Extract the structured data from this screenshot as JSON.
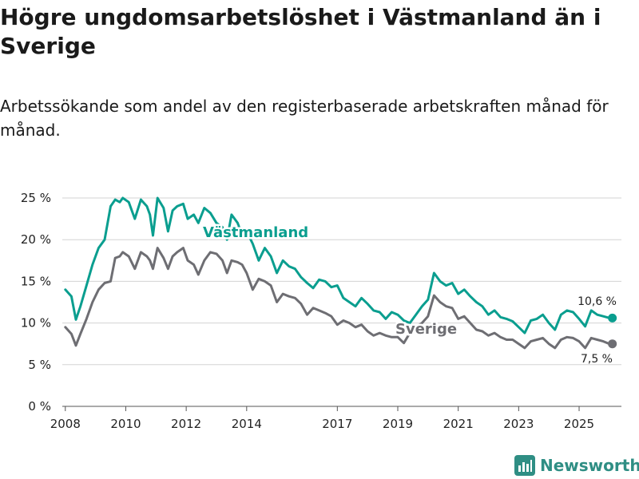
{
  "title": "Högre ungdomsarbetslöshet i Västmanland än i Sverige",
  "subtitle": "Arbetssökande som andel av den registerbaserade arbetskraften månad för månad.",
  "brand": "Newsworthy",
  "colors": {
    "vastmanland": "#0a9e8f",
    "sverige": "#6e6e73",
    "grid": "#d3d3d3",
    "brand": "#2f8e84"
  },
  "chart_data": {
    "type": "line",
    "y_ticks": [
      0,
      5,
      10,
      15,
      20,
      25
    ],
    "y_tick_labels": [
      "0 %",
      "5 %",
      "10 %",
      "15 %",
      "20 %",
      "25 %"
    ],
    "ylim": [
      0,
      25
    ],
    "x_ticks": [
      2008,
      2010,
      2012,
      2014,
      2017,
      2019,
      2021,
      2023,
      2025
    ],
    "xlim": [
      2007.9,
      2026.4
    ],
    "xlabel": "",
    "ylabel": "",
    "series": [
      {
        "name": "Västmanland",
        "label": "Västmanland",
        "end_label": "10,6 %",
        "x": [
          2008.0,
          2008.2,
          2008.35,
          2008.5,
          2008.7,
          2008.9,
          2009.1,
          2009.3,
          2009.5,
          2009.65,
          2009.8,
          2009.9,
          2010.1,
          2010.3,
          2010.5,
          2010.7,
          2010.8,
          2010.9,
          2011.05,
          2011.25,
          2011.4,
          2011.55,
          2011.7,
          2011.9,
          2012.05,
          2012.25,
          2012.4,
          2012.6,
          2012.8,
          2013.0,
          2013.2,
          2013.35,
          2013.5,
          2013.7,
          2013.85,
          2014.0,
          2014.2,
          2014.4,
          2014.6,
          2014.8,
          2015.0,
          2015.2,
          2015.4,
          2015.6,
          2015.8,
          2016.0,
          2016.2,
          2016.4,
          2016.6,
          2016.8,
          2017.0,
          2017.2,
          2017.4,
          2017.6,
          2017.8,
          2018.0,
          2018.2,
          2018.4,
          2018.6,
          2018.8,
          2019.0,
          2019.2,
          2019.4,
          2019.6,
          2019.8,
          2020.0,
          2020.2,
          2020.4,
          2020.6,
          2020.8,
          2021.0,
          2021.2,
          2021.4,
          2021.6,
          2021.8,
          2022.0,
          2022.2,
          2022.4,
          2022.6,
          2022.8,
          2023.0,
          2023.2,
          2023.4,
          2023.6,
          2023.8,
          2024.0,
          2024.2,
          2024.4,
          2024.6,
          2024.8,
          2025.0,
          2025.2,
          2025.4,
          2025.6,
          2025.8,
          2026.0,
          2026.1
        ],
        "values": [
          14.0,
          13.2,
          10.4,
          12.0,
          14.5,
          17.0,
          19.0,
          20.0,
          24.0,
          24.8,
          24.5,
          25.0,
          24.5,
          22.5,
          24.8,
          24.0,
          23.0,
          20.5,
          25.0,
          23.8,
          21.0,
          23.5,
          24.0,
          24.3,
          22.5,
          23.0,
          22.0,
          23.8,
          23.2,
          22.0,
          21.5,
          20.0,
          23.0,
          22.0,
          20.5,
          21.0,
          19.5,
          17.5,
          19.0,
          18.0,
          16.0,
          17.5,
          16.8,
          16.5,
          15.5,
          14.8,
          14.2,
          15.2,
          15.0,
          14.3,
          14.5,
          13.0,
          12.5,
          12.0,
          13.0,
          12.3,
          11.5,
          11.3,
          10.5,
          11.3,
          11.0,
          10.3,
          10.0,
          11.0,
          12.0,
          12.8,
          16.0,
          15.0,
          14.5,
          14.8,
          13.5,
          14.0,
          13.2,
          12.5,
          12.0,
          11.0,
          11.5,
          10.7,
          10.5,
          10.2,
          9.5,
          8.8,
          10.3,
          10.5,
          11.0,
          10.0,
          9.2,
          11.0,
          11.5,
          11.3,
          10.5,
          9.6,
          11.5,
          11.0,
          10.8,
          10.6,
          10.6
        ]
      },
      {
        "name": "Sverige",
        "label": "Sverige",
        "end_label": "7,5 %",
        "x": [
          2008.0,
          2008.2,
          2008.35,
          2008.5,
          2008.7,
          2008.9,
          2009.1,
          2009.3,
          2009.5,
          2009.65,
          2009.8,
          2009.9,
          2010.1,
          2010.3,
          2010.5,
          2010.7,
          2010.8,
          2010.9,
          2011.05,
          2011.25,
          2011.4,
          2011.55,
          2011.7,
          2011.9,
          2012.05,
          2012.25,
          2012.4,
          2012.6,
          2012.8,
          2013.0,
          2013.2,
          2013.35,
          2013.5,
          2013.7,
          2013.85,
          2014.0,
          2014.2,
          2014.4,
          2014.6,
          2014.8,
          2015.0,
          2015.2,
          2015.4,
          2015.6,
          2015.8,
          2016.0,
          2016.2,
          2016.4,
          2016.6,
          2016.8,
          2017.0,
          2017.2,
          2017.4,
          2017.6,
          2017.8,
          2018.0,
          2018.2,
          2018.4,
          2018.6,
          2018.8,
          2019.0,
          2019.2,
          2019.4,
          2019.6,
          2019.8,
          2020.0,
          2020.2,
          2020.4,
          2020.6,
          2020.8,
          2021.0,
          2021.2,
          2021.4,
          2021.6,
          2021.8,
          2022.0,
          2022.2,
          2022.4,
          2022.6,
          2022.8,
          2023.0,
          2023.2,
          2023.4,
          2023.6,
          2023.8,
          2024.0,
          2024.2,
          2024.4,
          2024.6,
          2024.8,
          2025.0,
          2025.2,
          2025.4,
          2025.6,
          2025.8,
          2026.0,
          2026.1
        ],
        "values": [
          9.5,
          8.7,
          7.3,
          8.7,
          10.5,
          12.5,
          14.0,
          14.8,
          15.0,
          17.8,
          18.0,
          18.5,
          18.0,
          16.5,
          18.5,
          18.0,
          17.5,
          16.5,
          19.0,
          17.8,
          16.5,
          18.0,
          18.5,
          19.0,
          17.5,
          17.0,
          15.8,
          17.5,
          18.5,
          18.3,
          17.5,
          16.0,
          17.5,
          17.3,
          17.0,
          16.0,
          14.0,
          15.3,
          15.0,
          14.5,
          12.5,
          13.5,
          13.2,
          13.0,
          12.3,
          11.0,
          11.8,
          11.5,
          11.2,
          10.8,
          9.8,
          10.3,
          10.0,
          9.5,
          9.8,
          9.0,
          8.5,
          8.8,
          8.5,
          8.3,
          8.3,
          7.6,
          8.8,
          9.5,
          10.0,
          10.8,
          13.3,
          12.5,
          12.0,
          11.8,
          10.5,
          10.8,
          10.0,
          9.2,
          9.0,
          8.5,
          8.8,
          8.3,
          8.0,
          8.0,
          7.5,
          7.0,
          7.8,
          8.0,
          8.2,
          7.5,
          7.0,
          8.0,
          8.3,
          8.2,
          7.8,
          7.0,
          8.2,
          8.0,
          7.8,
          7.5,
          7.5
        ]
      }
    ]
  }
}
